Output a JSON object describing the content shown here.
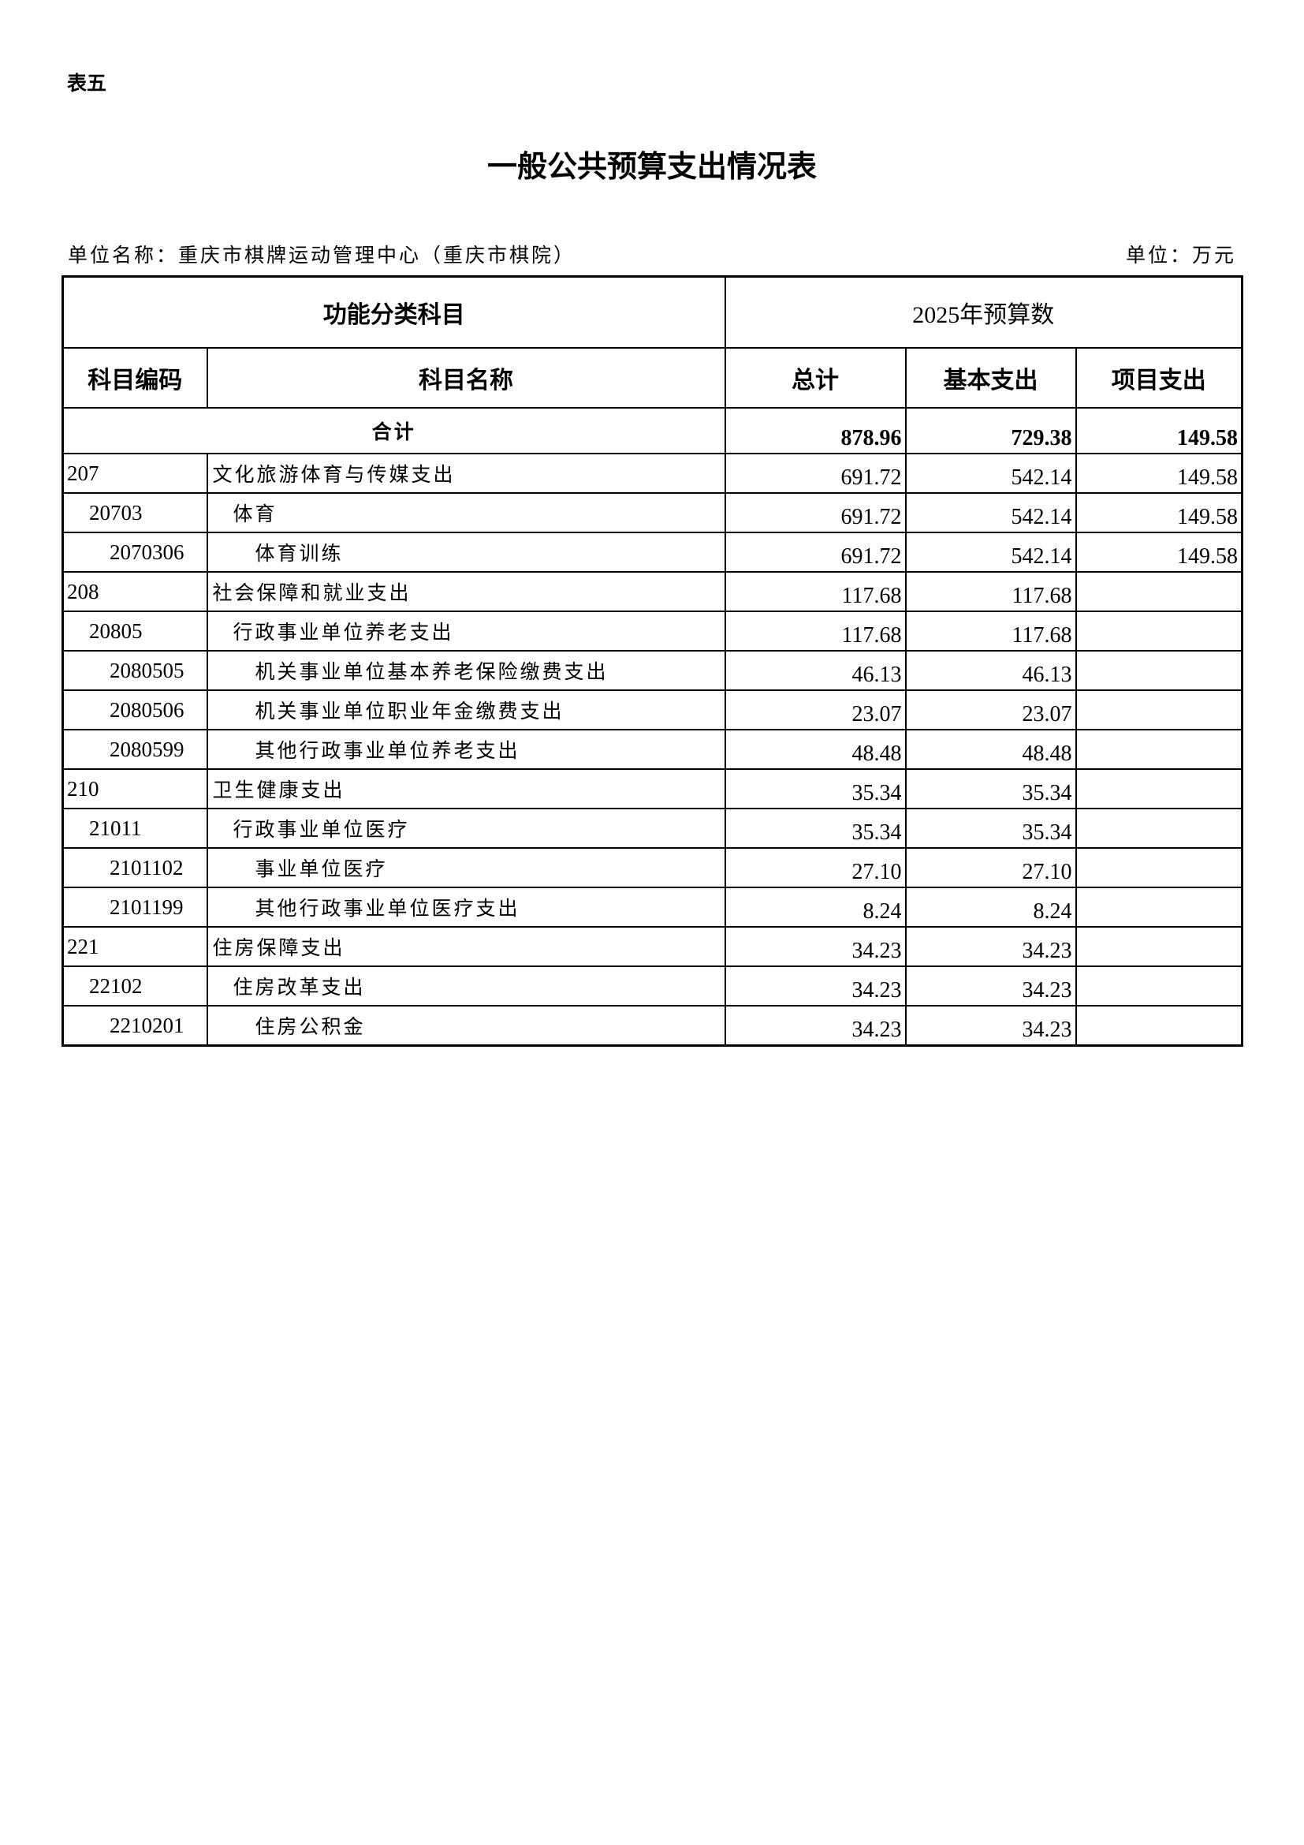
{
  "table_label": "表五",
  "title": "一般公共预算支出情况表",
  "unit_name": "单位名称：重庆市棋牌运动管理中心（重庆市棋院）",
  "unit": "单位：万元",
  "headers": {
    "group_left": "功能分类科目",
    "group_right": "2025年预算数",
    "code": "科目编码",
    "name": "科目名称",
    "total": "总计",
    "basic": "基本支出",
    "project": "项目支出"
  },
  "total_row": {
    "label": "合计",
    "total": "878.96",
    "basic": "729.38",
    "project": "149.58"
  },
  "rows": [
    {
      "level": 1,
      "code": "207",
      "name": "文化旅游体育与传媒支出",
      "total": "691.72",
      "basic": "542.14",
      "project": "149.58"
    },
    {
      "level": 2,
      "code": "20703",
      "name": "体育",
      "total": "691.72",
      "basic": "542.14",
      "project": "149.58"
    },
    {
      "level": 3,
      "code": "2070306",
      "name": "体育训练",
      "total": "691.72",
      "basic": "542.14",
      "project": "149.58"
    },
    {
      "level": 1,
      "code": "208",
      "name": "社会保障和就业支出",
      "total": "117.68",
      "basic": "117.68",
      "project": ""
    },
    {
      "level": 2,
      "code": "20805",
      "name": "行政事业单位养老支出",
      "total": "117.68",
      "basic": "117.68",
      "project": ""
    },
    {
      "level": 3,
      "code": "2080505",
      "name": "机关事业单位基本养老保险缴费支出",
      "total": "46.13",
      "basic": "46.13",
      "project": ""
    },
    {
      "level": 3,
      "code": "2080506",
      "name": "机关事业单位职业年金缴费支出",
      "total": "23.07",
      "basic": "23.07",
      "project": ""
    },
    {
      "level": 3,
      "code": "2080599",
      "name": "其他行政事业单位养老支出",
      "total": "48.48",
      "basic": "48.48",
      "project": ""
    },
    {
      "level": 1,
      "code": "210",
      "name": "卫生健康支出",
      "total": "35.34",
      "basic": "35.34",
      "project": ""
    },
    {
      "level": 2,
      "code": "21011",
      "name": "行政事业单位医疗",
      "total": "35.34",
      "basic": "35.34",
      "project": ""
    },
    {
      "level": 3,
      "code": "2101102",
      "name": "事业单位医疗",
      "total": "27.10",
      "basic": "27.10",
      "project": ""
    },
    {
      "level": 3,
      "code": "2101199",
      "name": "其他行政事业单位医疗支出",
      "total": "8.24",
      "basic": "8.24",
      "project": ""
    },
    {
      "level": 1,
      "code": "221",
      "name": "住房保障支出",
      "total": "34.23",
      "basic": "34.23",
      "project": ""
    },
    {
      "level": 2,
      "code": "22102",
      "name": "住房改革支出",
      "total": "34.23",
      "basic": "34.23",
      "project": ""
    },
    {
      "level": 3,
      "code": "2210201",
      "name": "住房公积金",
      "total": "34.23",
      "basic": "34.23",
      "project": ""
    }
  ]
}
